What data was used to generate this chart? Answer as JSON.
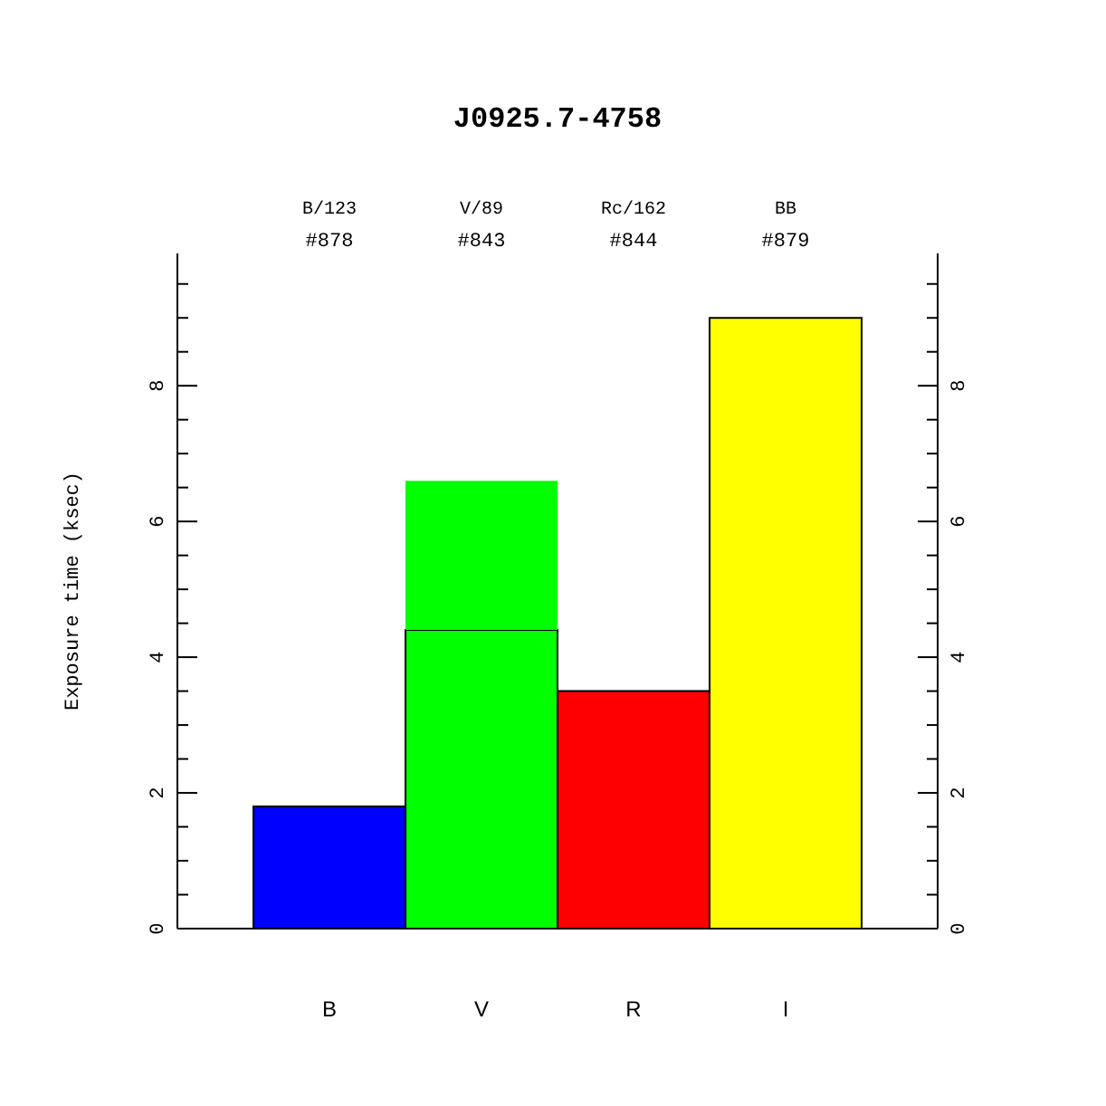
{
  "chart_data": {
    "type": "bar",
    "title": "J0925.7-4758",
    "ylabel": "Exposure time (ksec)",
    "categories": [
      "B",
      "V",
      "R",
      "I"
    ],
    "stacked": true,
    "series": [
      {
        "colors": [
          "#0000ff",
          "#00ff00",
          "#ff0000",
          "#ffff00"
        ],
        "values": [
          1.8,
          4.4,
          3.5,
          9.0
        ]
      },
      {
        "colors": [
          null,
          "#00ff00",
          null,
          null
        ],
        "values": [
          null,
          2.2,
          null,
          null
        ]
      }
    ],
    "ylim": [
      0,
      9.95
    ],
    "yticks": [
      0,
      {
        "value": 0.5,
        "label": null
      },
      {
        "value": 1,
        "label": null
      },
      {
        "value": 1.5,
        "label": null
      },
      2,
      {
        "value": 2.5,
        "label": null
      },
      {
        "value": 3,
        "label": null
      },
      {
        "value": 3.5,
        "label": null
      },
      4,
      {
        "value": 4.5,
        "label": null
      },
      {
        "value": 5,
        "label": null
      },
      {
        "value": 5.5,
        "label": null
      },
      6,
      {
        "value": 6.5,
        "label": null
      },
      {
        "value": 7,
        "label": null
      },
      {
        "value": 7.5,
        "label": null
      },
      8,
      {
        "value": 8.5,
        "label": null
      },
      {
        "value": 9,
        "label": null
      },
      {
        "value": 9.5,
        "label": null
      }
    ],
    "y2lim": [
      0,
      9.95
    ],
    "y2ticks": [
      0,
      {
        "value": 0.5,
        "label": null
      },
      {
        "value": 1,
        "label": null
      },
      {
        "value": 1.5,
        "label": null
      },
      2,
      {
        "value": 2.5,
        "label": null
      },
      {
        "value": 3,
        "label": null
      },
      {
        "value": 3.5,
        "label": null
      },
      4,
      {
        "value": 4.5,
        "label": null
      },
      {
        "value": 5,
        "label": null
      },
      {
        "value": 5.5,
        "label": null
      },
      6,
      {
        "value": 6.5,
        "label": null
      },
      {
        "value": 7,
        "label": null
      },
      {
        "value": 7.5,
        "label": null
      },
      8,
      {
        "value": 8.5,
        "label": null
      },
      {
        "value": 9,
        "label": null
      },
      {
        "value": 9.5,
        "label": null
      }
    ],
    "annotations": [
      "B/123",
      "#878",
      "V/89",
      "#843",
      "Rc/162",
      "#844",
      "BB",
      "#879"
    ]
  }
}
